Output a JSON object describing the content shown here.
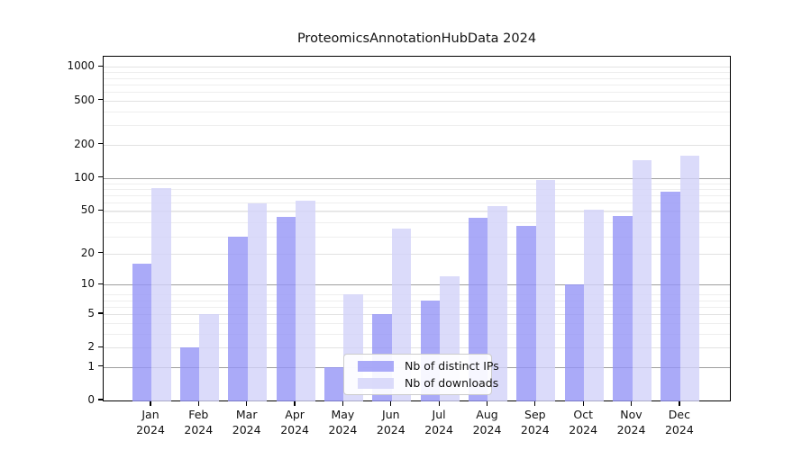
{
  "title": "ProteomicsAnnotationHubData 2024",
  "chart_data": {
    "type": "bar",
    "title": "ProteomicsAnnotationHubData 2024",
    "categories": [
      "Jan 2024",
      "Feb 2024",
      "Mar 2024",
      "Apr 2024",
      "May 2024",
      "Jun 2024",
      "Jul 2024",
      "Aug 2024",
      "Sep 2024",
      "Oct 2024",
      "Nov 2024",
      "Dec 2024"
    ],
    "x_tick_month": [
      "Jan",
      "Feb",
      "Mar",
      "Apr",
      "May",
      "Jun",
      "Jul",
      "Aug",
      "Sep",
      "Oct",
      "Nov",
      "Dec"
    ],
    "x_tick_year": "2024",
    "series": [
      {
        "name": "Nb of distinct IPs",
        "color": "#9595f6",
        "opacity": 0.8,
        "values": [
          16,
          2,
          29,
          44,
          1,
          5,
          7,
          43,
          36,
          10,
          45,
          74
        ]
      },
      {
        "name": "Nb of downloads",
        "color": "#d2d2f9",
        "opacity": 0.8,
        "values": [
          80,
          5,
          58,
          62,
          8,
          34,
          12,
          55,
          96,
          51,
          145,
          160
        ]
      }
    ],
    "yscale": "log1p",
    "yticks": [
      0,
      1,
      2,
      5,
      10,
      20,
      50,
      100,
      200,
      500,
      1000
    ],
    "ylim": [
      0,
      1200
    ],
    "grid": "horizontal",
    "legend_position": "lower center inside"
  },
  "legend": {
    "items": [
      {
        "label": "Nb of distinct IPs",
        "color": "#9595f6",
        "opacity": 0.8
      },
      {
        "label": "Nb of downloads",
        "color": "#d2d2f9",
        "opacity": 0.8
      }
    ]
  },
  "colors": {
    "background": "#ffffff",
    "axis": "#000000",
    "grid_major": "#9e9e9e",
    "grid_light": "#e2e2e2",
    "grid_minor": "#eeeeee",
    "bar_dark_rendered": "#aaaaf8",
    "bar_light_rendered": "#dbdbfa"
  }
}
